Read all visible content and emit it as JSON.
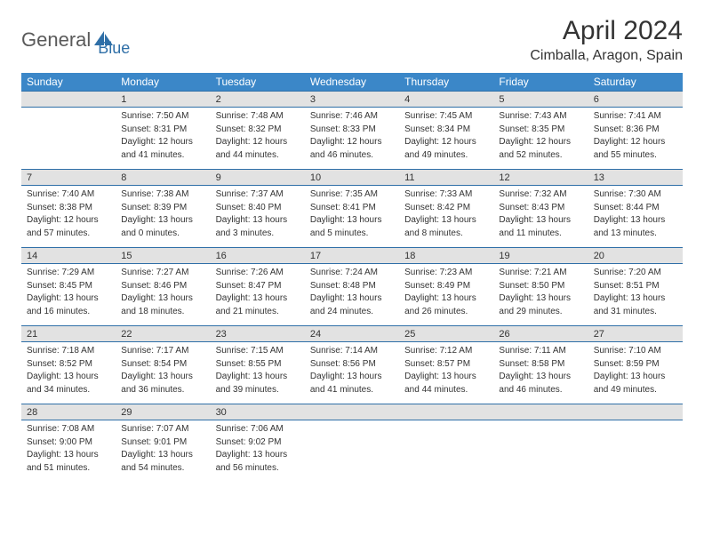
{
  "logo": {
    "text1": "General",
    "text2": "Blue"
  },
  "title": "April 2024",
  "location": "Cimballa, Aragon, Spain",
  "colors": {
    "header_bg": "#3b87c8",
    "header_fg": "#ffffff",
    "date_bg": "#e2e2e2",
    "rule": "#2f6fa7",
    "text": "#333333",
    "logo_gray": "#5a5a5a",
    "logo_blue": "#2f6fa7"
  },
  "day_names": [
    "Sunday",
    "Monday",
    "Tuesday",
    "Wednesday",
    "Thursday",
    "Friday",
    "Saturday"
  ],
  "weeks": [
    {
      "dates": [
        "",
        "1",
        "2",
        "3",
        "4",
        "5",
        "6"
      ],
      "cells": [
        null,
        {
          "sunrise": "Sunrise: 7:50 AM",
          "sunset": "Sunset: 8:31 PM",
          "daylight1": "Daylight: 12 hours",
          "daylight2": "and 41 minutes."
        },
        {
          "sunrise": "Sunrise: 7:48 AM",
          "sunset": "Sunset: 8:32 PM",
          "daylight1": "Daylight: 12 hours",
          "daylight2": "and 44 minutes."
        },
        {
          "sunrise": "Sunrise: 7:46 AM",
          "sunset": "Sunset: 8:33 PM",
          "daylight1": "Daylight: 12 hours",
          "daylight2": "and 46 minutes."
        },
        {
          "sunrise": "Sunrise: 7:45 AM",
          "sunset": "Sunset: 8:34 PM",
          "daylight1": "Daylight: 12 hours",
          "daylight2": "and 49 minutes."
        },
        {
          "sunrise": "Sunrise: 7:43 AM",
          "sunset": "Sunset: 8:35 PM",
          "daylight1": "Daylight: 12 hours",
          "daylight2": "and 52 minutes."
        },
        {
          "sunrise": "Sunrise: 7:41 AM",
          "sunset": "Sunset: 8:36 PM",
          "daylight1": "Daylight: 12 hours",
          "daylight2": "and 55 minutes."
        }
      ]
    },
    {
      "dates": [
        "7",
        "8",
        "9",
        "10",
        "11",
        "12",
        "13"
      ],
      "cells": [
        {
          "sunrise": "Sunrise: 7:40 AM",
          "sunset": "Sunset: 8:38 PM",
          "daylight1": "Daylight: 12 hours",
          "daylight2": "and 57 minutes."
        },
        {
          "sunrise": "Sunrise: 7:38 AM",
          "sunset": "Sunset: 8:39 PM",
          "daylight1": "Daylight: 13 hours",
          "daylight2": "and 0 minutes."
        },
        {
          "sunrise": "Sunrise: 7:37 AM",
          "sunset": "Sunset: 8:40 PM",
          "daylight1": "Daylight: 13 hours",
          "daylight2": "and 3 minutes."
        },
        {
          "sunrise": "Sunrise: 7:35 AM",
          "sunset": "Sunset: 8:41 PM",
          "daylight1": "Daylight: 13 hours",
          "daylight2": "and 5 minutes."
        },
        {
          "sunrise": "Sunrise: 7:33 AM",
          "sunset": "Sunset: 8:42 PM",
          "daylight1": "Daylight: 13 hours",
          "daylight2": "and 8 minutes."
        },
        {
          "sunrise": "Sunrise: 7:32 AM",
          "sunset": "Sunset: 8:43 PM",
          "daylight1": "Daylight: 13 hours",
          "daylight2": "and 11 minutes."
        },
        {
          "sunrise": "Sunrise: 7:30 AM",
          "sunset": "Sunset: 8:44 PM",
          "daylight1": "Daylight: 13 hours",
          "daylight2": "and 13 minutes."
        }
      ]
    },
    {
      "dates": [
        "14",
        "15",
        "16",
        "17",
        "18",
        "19",
        "20"
      ],
      "cells": [
        {
          "sunrise": "Sunrise: 7:29 AM",
          "sunset": "Sunset: 8:45 PM",
          "daylight1": "Daylight: 13 hours",
          "daylight2": "and 16 minutes."
        },
        {
          "sunrise": "Sunrise: 7:27 AM",
          "sunset": "Sunset: 8:46 PM",
          "daylight1": "Daylight: 13 hours",
          "daylight2": "and 18 minutes."
        },
        {
          "sunrise": "Sunrise: 7:26 AM",
          "sunset": "Sunset: 8:47 PM",
          "daylight1": "Daylight: 13 hours",
          "daylight2": "and 21 minutes."
        },
        {
          "sunrise": "Sunrise: 7:24 AM",
          "sunset": "Sunset: 8:48 PM",
          "daylight1": "Daylight: 13 hours",
          "daylight2": "and 24 minutes."
        },
        {
          "sunrise": "Sunrise: 7:23 AM",
          "sunset": "Sunset: 8:49 PM",
          "daylight1": "Daylight: 13 hours",
          "daylight2": "and 26 minutes."
        },
        {
          "sunrise": "Sunrise: 7:21 AM",
          "sunset": "Sunset: 8:50 PM",
          "daylight1": "Daylight: 13 hours",
          "daylight2": "and 29 minutes."
        },
        {
          "sunrise": "Sunrise: 7:20 AM",
          "sunset": "Sunset: 8:51 PM",
          "daylight1": "Daylight: 13 hours",
          "daylight2": "and 31 minutes."
        }
      ]
    },
    {
      "dates": [
        "21",
        "22",
        "23",
        "24",
        "25",
        "26",
        "27"
      ],
      "cells": [
        {
          "sunrise": "Sunrise: 7:18 AM",
          "sunset": "Sunset: 8:52 PM",
          "daylight1": "Daylight: 13 hours",
          "daylight2": "and 34 minutes."
        },
        {
          "sunrise": "Sunrise: 7:17 AM",
          "sunset": "Sunset: 8:54 PM",
          "daylight1": "Daylight: 13 hours",
          "daylight2": "and 36 minutes."
        },
        {
          "sunrise": "Sunrise: 7:15 AM",
          "sunset": "Sunset: 8:55 PM",
          "daylight1": "Daylight: 13 hours",
          "daylight2": "and 39 minutes."
        },
        {
          "sunrise": "Sunrise: 7:14 AM",
          "sunset": "Sunset: 8:56 PM",
          "daylight1": "Daylight: 13 hours",
          "daylight2": "and 41 minutes."
        },
        {
          "sunrise": "Sunrise: 7:12 AM",
          "sunset": "Sunset: 8:57 PM",
          "daylight1": "Daylight: 13 hours",
          "daylight2": "and 44 minutes."
        },
        {
          "sunrise": "Sunrise: 7:11 AM",
          "sunset": "Sunset: 8:58 PM",
          "daylight1": "Daylight: 13 hours",
          "daylight2": "and 46 minutes."
        },
        {
          "sunrise": "Sunrise: 7:10 AM",
          "sunset": "Sunset: 8:59 PM",
          "daylight1": "Daylight: 13 hours",
          "daylight2": "and 49 minutes."
        }
      ]
    },
    {
      "dates": [
        "28",
        "29",
        "30",
        "",
        "",
        "",
        ""
      ],
      "cells": [
        {
          "sunrise": "Sunrise: 7:08 AM",
          "sunset": "Sunset: 9:00 PM",
          "daylight1": "Daylight: 13 hours",
          "daylight2": "and 51 minutes."
        },
        {
          "sunrise": "Sunrise: 7:07 AM",
          "sunset": "Sunset: 9:01 PM",
          "daylight1": "Daylight: 13 hours",
          "daylight2": "and 54 minutes."
        },
        {
          "sunrise": "Sunrise: 7:06 AM",
          "sunset": "Sunset: 9:02 PM",
          "daylight1": "Daylight: 13 hours",
          "daylight2": "and 56 minutes."
        },
        null,
        null,
        null,
        null
      ]
    }
  ]
}
